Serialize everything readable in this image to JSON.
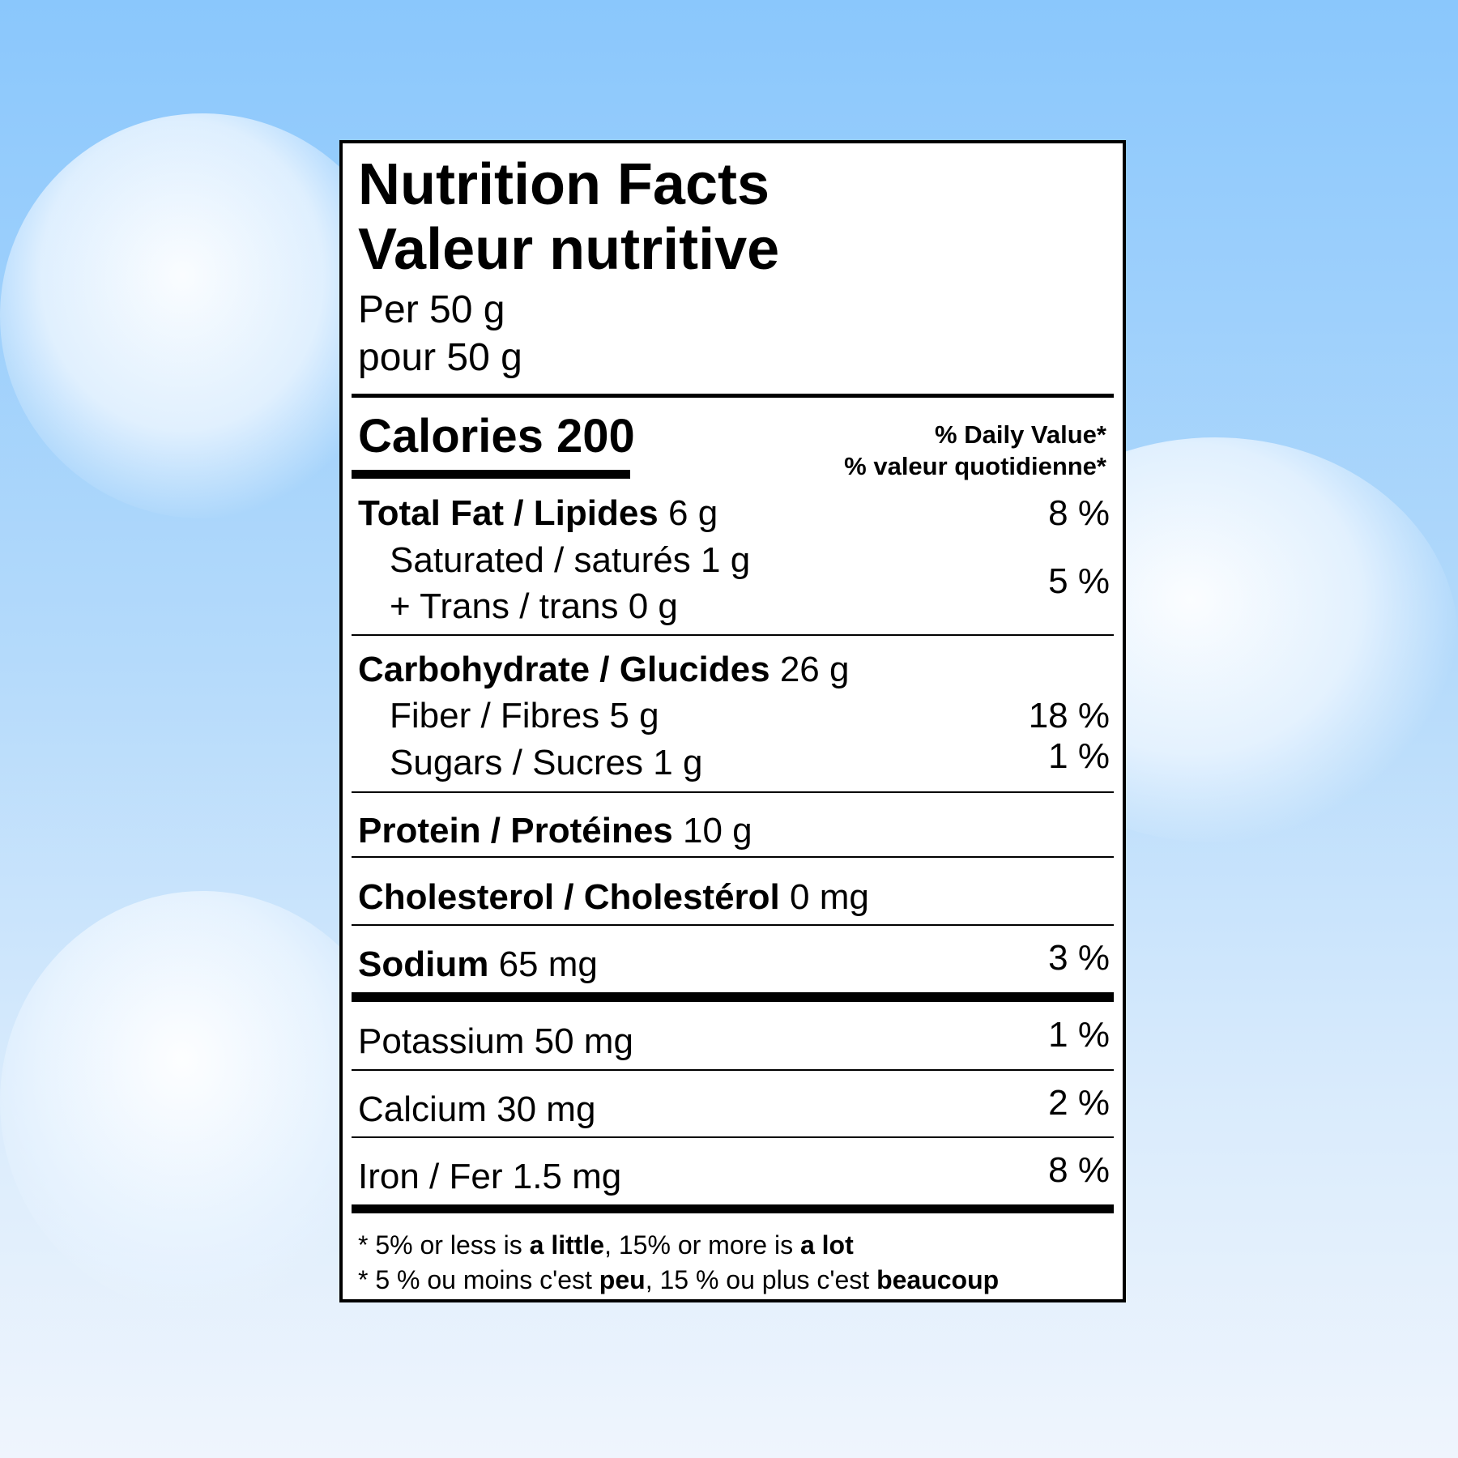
{
  "title_en": "Nutrition Facts",
  "title_fr": "Valeur nutritive",
  "serving_en": "Per 50 g",
  "serving_fr": "pour 50 g",
  "calories_label": "Calories",
  "calories_value": "200",
  "dv_en": "% Daily Value*",
  "dv_fr": "% valeur quotidienne*",
  "rows": {
    "fat": {
      "name": "Total Fat / Lipides",
      "amount": "6 g",
      "dv": "8 %"
    },
    "saturated": {
      "name": "Saturated / saturés",
      "amount": "1 g",
      "dv": "5 %"
    },
    "trans": {
      "name": "+ Trans / trans",
      "amount": "0 g"
    },
    "carb": {
      "name": "Carbohydrate / Glucides",
      "amount": "26 g"
    },
    "fiber": {
      "name": "Fiber / Fibres",
      "amount": "5 g",
      "dv": "18 %"
    },
    "sugars": {
      "name": "Sugars / Sucres",
      "amount": "1 g",
      "dv": "1 %"
    },
    "protein": {
      "name": "Protein / Protéines",
      "amount": "10 g"
    },
    "cholesterol": {
      "name": "Cholesterol / Cholestérol",
      "amount": "0 mg"
    },
    "sodium": {
      "name": "Sodium",
      "amount": "65 mg",
      "dv": "3 %"
    },
    "potassium": {
      "name": "Potassium 50 mg",
      "dv": "1 %"
    },
    "calcium": {
      "name": "Calcium 30 mg",
      "dv": "2 %"
    },
    "iron": {
      "name": "Iron / Fer 1.5 mg",
      "dv": "8 %"
    }
  },
  "footnote_en": {
    "a": "* 5% or less is ",
    "b": "a little",
    "c": ", 15% or more is ",
    "d": "a lot"
  },
  "footnote_fr": {
    "a": "* 5 % ou moins c'est ",
    "b": "peu",
    "c": ", 15 % ou plus c'est ",
    "d": "beaucoup"
  },
  "colors": {
    "sky_top": "#8ac7fc",
    "sky_bottom": "#eff5fd"
  }
}
